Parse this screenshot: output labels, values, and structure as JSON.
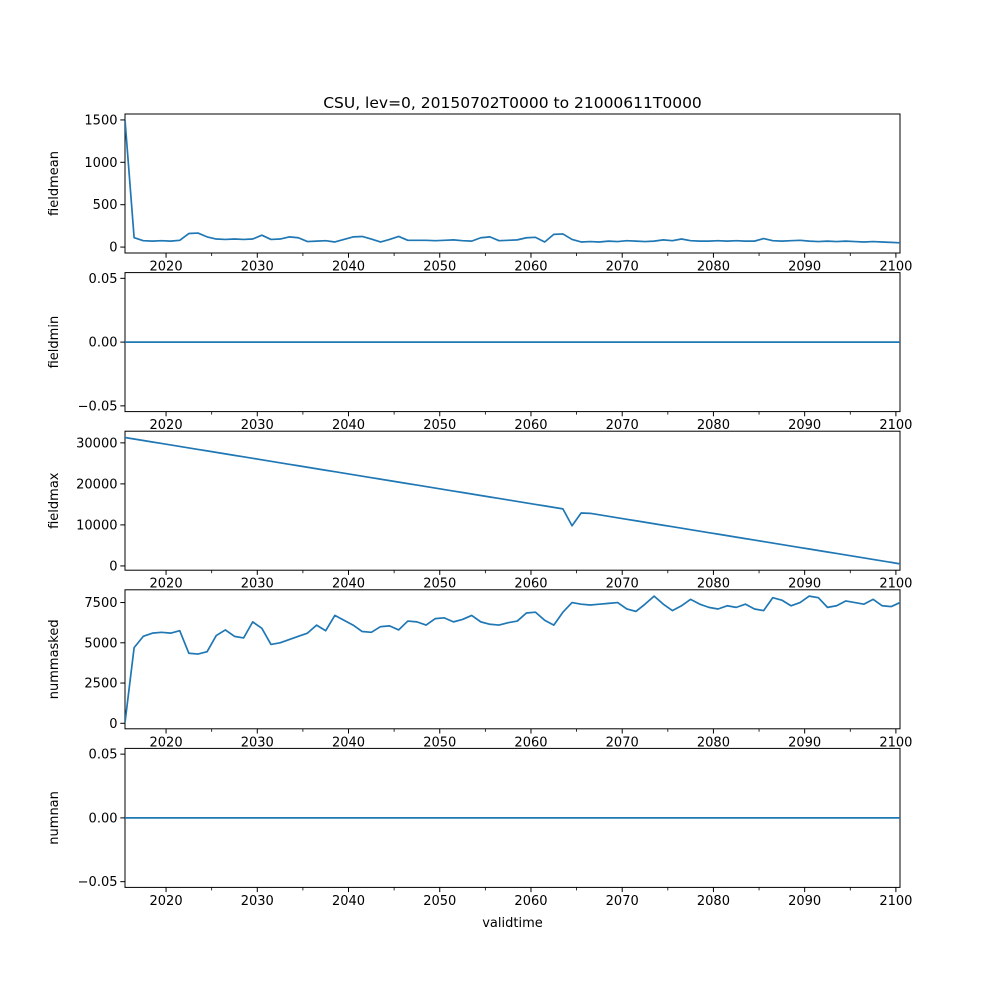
{
  "figure": {
    "title": "CSU, lev=0, 20150702T0000 to 21000611T0000",
    "xlabel": "validtime",
    "line_color": "#1f77b4",
    "text_color": "#000000",
    "spine_color": "#000000",
    "background": "#ffffff"
  },
  "chart_data": {
    "type": "line",
    "title": "CSU, lev=0, 20150702T0000 to 21000611T0000",
    "xlabel": "validtime",
    "legend": "none",
    "grid": false,
    "xlim": [
      2015.5,
      2100.45
    ],
    "xticks": [
      2020,
      2030,
      2040,
      2050,
      2060,
      2070,
      2080,
      2090,
      2100
    ],
    "xticks_minor": [
      2025,
      2035,
      2045,
      2055,
      2065,
      2075,
      2085,
      2095
    ],
    "x": [
      2015.5,
      2016.5,
      2017.5,
      2018.5,
      2019.5,
      2020.5,
      2021.5,
      2022.5,
      2023.5,
      2024.5,
      2025.5,
      2026.5,
      2027.5,
      2028.5,
      2029.5,
      2030.5,
      2031.5,
      2032.5,
      2033.5,
      2034.5,
      2035.5,
      2036.5,
      2037.5,
      2038.5,
      2039.5,
      2040.5,
      2041.5,
      2042.5,
      2043.5,
      2044.5,
      2045.5,
      2046.5,
      2047.5,
      2048.5,
      2049.5,
      2050.5,
      2051.5,
      2052.5,
      2053.5,
      2054.5,
      2055.5,
      2056.5,
      2057.5,
      2058.5,
      2059.5,
      2060.5,
      2061.5,
      2062.5,
      2063.5,
      2064.5,
      2065.5,
      2066.5,
      2067.5,
      2068.5,
      2069.5,
      2070.5,
      2071.5,
      2072.5,
      2073.5,
      2074.5,
      2075.5,
      2076.5,
      2077.5,
      2078.5,
      2079.5,
      2080.5,
      2081.5,
      2082.5,
      2083.5,
      2084.5,
      2085.5,
      2086.5,
      2087.5,
      2088.5,
      2089.5,
      2090.5,
      2091.5,
      2092.5,
      2093.5,
      2094.5,
      2095.5,
      2096.5,
      2097.5,
      2098.5,
      2099.5,
      2100.45
    ],
    "subplots": [
      {
        "ylabel": "fieldmean",
        "ylim": [
          -70,
          1570
        ],
        "yticks": [
          0,
          500,
          1000,
          1500
        ],
        "ytick_labels": [
          "0",
          "500",
          "1000",
          "1500"
        ],
        "values": [
          1500,
          110,
          75,
          70,
          75,
          70,
          80,
          160,
          165,
          120,
          95,
          90,
          95,
          90,
          95,
          140,
          90,
          95,
          120,
          110,
          65,
          70,
          75,
          60,
          90,
          120,
          125,
          95,
          60,
          90,
          125,
          80,
          80,
          80,
          75,
          80,
          85,
          75,
          70,
          110,
          120,
          75,
          80,
          85,
          110,
          115,
          60,
          150,
          155,
          90,
          60,
          65,
          60,
          70,
          65,
          75,
          70,
          65,
          70,
          85,
          75,
          95,
          75,
          70,
          70,
          75,
          70,
          75,
          70,
          70,
          100,
          75,
          70,
          75,
          80,
          70,
          65,
          70,
          65,
          70,
          65,
          60,
          65,
          60,
          55,
          50
        ]
      },
      {
        "ylabel": "fieldmin",
        "ylim": [
          -0.0545,
          0.0545
        ],
        "yticks": [
          -0.05,
          0,
          0.05
        ],
        "ytick_labels": [
          "−0.05",
          "0.00",
          "0.05"
        ],
        "constant": 0
      },
      {
        "ylabel": "fieldmax",
        "ylim": [
          -1040,
          32840
        ],
        "yticks": [
          0,
          10000,
          20000,
          30000
        ],
        "ytick_labels": [
          "0",
          "10000",
          "20000",
          "30000"
        ],
        "values": [
          31300,
          30938,
          30575,
          30213,
          29851,
          29488,
          29126,
          28764,
          28401,
          28039,
          27677,
          27314,
          26952,
          26590,
          26227,
          25865,
          25502,
          25140,
          24778,
          24415,
          24053,
          23691,
          23328,
          22966,
          22604,
          22241,
          21879,
          21517,
          21154,
          20792,
          20430,
          20067,
          19705,
          19342,
          18980,
          18618,
          18255,
          17893,
          17531,
          17168,
          16806,
          16444,
          16081,
          15719,
          15357,
          14994,
          14632,
          14270,
          13907,
          9800,
          12900,
          12820,
          12458,
          12096,
          11733,
          11371,
          11009,
          10646,
          10284,
          9922,
          9559,
          9197,
          8835,
          8472,
          8110,
          7747,
          7385,
          7023,
          6660,
          6298,
          5936,
          5573,
          5211,
          4849,
          4486,
          4124,
          3762,
          3399,
          3037,
          2675,
          2312,
          1950,
          1587,
          1225,
          863,
          500
        ]
      },
      {
        "ylabel": "nummasked",
        "ylim": [
          -342,
          8292
        ],
        "yticks": [
          0,
          2500,
          5000,
          7500
        ],
        "ytick_labels": [
          "0",
          "2500",
          "5000",
          "7500"
        ],
        "values": [
          50,
          4700,
          5400,
          5600,
          5650,
          5600,
          5750,
          4350,
          4300,
          4450,
          5450,
          5800,
          5400,
          5300,
          6300,
          5900,
          4900,
          5000,
          5200,
          5400,
          5600,
          6100,
          5750,
          6700,
          6400,
          6100,
          5700,
          5650,
          6000,
          6050,
          5800,
          6350,
          6300,
          6100,
          6500,
          6550,
          6300,
          6450,
          6700,
          6300,
          6150,
          6100,
          6250,
          6350,
          6850,
          6900,
          6400,
          6100,
          6900,
          7500,
          7400,
          7350,
          7400,
          7450,
          7500,
          7100,
          6950,
          7400,
          7900,
          7400,
          7000,
          7300,
          7700,
          7400,
          7200,
          7100,
          7300,
          7200,
          7400,
          7100,
          7000,
          7800,
          7650,
          7300,
          7500,
          7900,
          7800,
          7200,
          7300,
          7600,
          7500,
          7400,
          7700,
          7300,
          7250,
          7500
        ]
      },
      {
        "ylabel": "numnan",
        "ylim": [
          -0.0545,
          0.0545
        ],
        "yticks": [
          -0.05,
          0,
          0.05
        ],
        "ytick_labels": [
          "−0.05",
          "0.00",
          "0.05"
        ],
        "constant": 0
      }
    ]
  }
}
